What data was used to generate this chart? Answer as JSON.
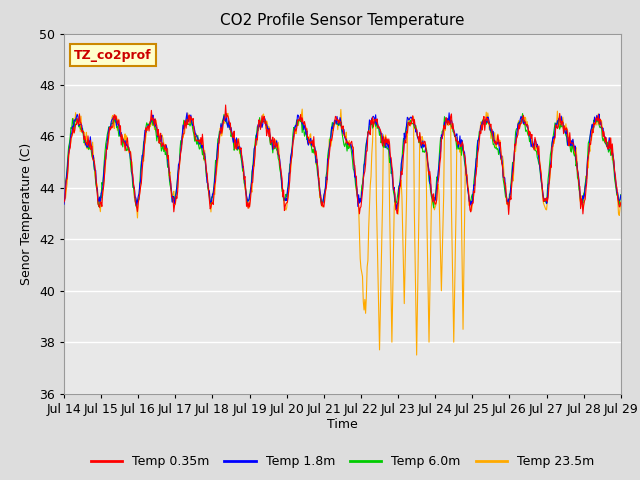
{
  "title": "CO2 Profile Sensor Temperature",
  "xlabel": "Time",
  "ylabel": "Senor Temperature (C)",
  "ylim": [
    36,
    50
  ],
  "xlim": [
    0,
    360
  ],
  "annotation_text": "TZ_co2prof",
  "annotation_bg": "#ffffcc",
  "annotation_border": "#cc8800",
  "annotation_text_color": "#cc0000",
  "fig_bg": "#dddddd",
  "plot_bg": "#e8e8e8",
  "legend_labels": [
    "Temp 0.35m",
    "Temp 1.8m",
    "Temp 6.0m",
    "Temp 23.5m"
  ],
  "legend_colors": [
    "#ff0000",
    "#0000ff",
    "#00cc00",
    "#ffaa00"
  ],
  "tick_labels": [
    "Jul 14",
    "Jul 15",
    "Jul 16",
    "Jul 17",
    "Jul 18",
    "Jul 19",
    "Jul 20",
    "Jul 21",
    "Jul 22",
    "Jul 23",
    "Jul 24",
    "Jul 25",
    "Jul 26",
    "Jul 27",
    "Jul 28",
    "Jul 29"
  ],
  "tick_positions": [
    0,
    24,
    48,
    72,
    96,
    120,
    144,
    168,
    192,
    216,
    240,
    264,
    288,
    312,
    336,
    360
  ],
  "yticks": [
    36,
    38,
    40,
    42,
    44,
    46,
    48,
    50
  ]
}
